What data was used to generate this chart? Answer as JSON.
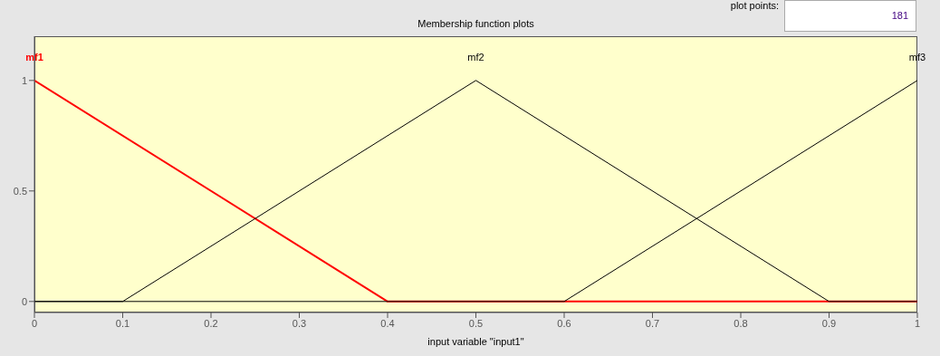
{
  "chart_data": {
    "type": "line",
    "title": "Membership function plots",
    "xlabel": "input variable \"input1\"",
    "annotations": [
      "plot points:",
      "181"
    ],
    "xlim": [
      0,
      1
    ],
    "xticks": [
      0,
      0.1,
      0.2,
      0.3,
      0.4,
      0.5,
      0.6,
      0.7,
      0.8,
      0.9,
      1
    ],
    "ylim": [
      -0.05,
      1.2
    ],
    "yticks": [
      0,
      0.5,
      1
    ],
    "marker": "none",
    "line_style": "solid",
    "series": [
      {
        "name": "mf1",
        "color": "#ff0000",
        "x": [
          0,
          0.4,
          1
        ],
        "values": [
          1,
          0,
          0
        ]
      },
      {
        "name": "mf2",
        "color": "#000000",
        "x": [
          0,
          0.1,
          0.5,
          0.9,
          1
        ],
        "values": [
          0,
          0,
          1,
          0,
          0
        ]
      },
      {
        "name": "mf3",
        "color": "#000000",
        "x": [
          0,
          0.6,
          1
        ],
        "values": [
          0,
          0,
          1
        ]
      }
    ]
  }
}
